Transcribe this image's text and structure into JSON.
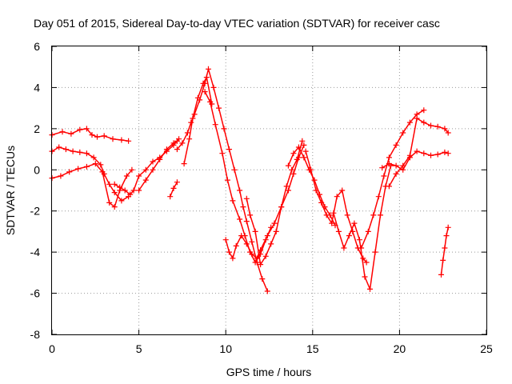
{
  "chart_data": {
    "type": "line",
    "title": "Day 051 of 2015, Sidereal Day-to-day VTEC variation (SDTVAR) for receiver casc",
    "xlabel": "GPS time / hours",
    "ylabel": "SDTVAR / TECUs",
    "xlim": [
      0,
      25
    ],
    "ylim": [
      -8,
      6
    ],
    "xticks": [
      0,
      5,
      10,
      15,
      20,
      25
    ],
    "yticks": [
      -8,
      -6,
      -4,
      -2,
      0,
      2,
      4,
      6
    ],
    "grid": true,
    "marker": "+",
    "color": "#ff0000",
    "series": [
      {
        "x": [
          0.0,
          0.6,
          1.1,
          1.6,
          2.0,
          2.3,
          2.6,
          3.0,
          3.5,
          4.0,
          4.4
        ],
        "y": [
          1.7,
          1.85,
          1.75,
          1.95,
          2.0,
          1.7,
          1.6,
          1.65,
          1.5,
          1.45,
          1.4
        ]
      },
      {
        "x": [
          0.0,
          0.4,
          0.8,
          1.2,
          1.6,
          2.0,
          2.4,
          2.8,
          3.0,
          3.3,
          3.6,
          4.0,
          4.4
        ],
        "y": [
          0.9,
          1.1,
          1.0,
          0.9,
          0.85,
          0.8,
          0.6,
          0.25,
          -0.2,
          -0.7,
          -1.1,
          -1.5,
          -1.3
        ]
      },
      {
        "x": [
          0.0,
          0.5,
          1.0,
          1.5,
          2.0,
          2.5,
          2.9,
          3.3,
          3.6,
          3.9,
          4.3,
          4.6
        ],
        "y": [
          -0.4,
          -0.3,
          -0.1,
          0.05,
          0.15,
          0.3,
          -0.1,
          -1.6,
          -1.8,
          -1.0,
          -0.3,
          0.0
        ]
      },
      {
        "x": [
          3.6,
          3.9,
          4.2,
          4.5,
          4.7,
          5.0,
          5.4,
          5.8,
          6.2,
          6.6,
          7.0,
          7.3
        ],
        "y": [
          -0.7,
          -0.85,
          -1.0,
          -1.2,
          -1.0,
          -0.3,
          0.0,
          0.4,
          0.6,
          0.9,
          1.2,
          1.5
        ]
      },
      {
        "x": [
          5.0,
          5.4,
          5.8,
          6.2,
          6.6,
          7.0,
          7.2
        ],
        "y": [
          -1.0,
          -0.5,
          0.0,
          0.5,
          1.0,
          1.3,
          1.4
        ]
      },
      {
        "x": [
          6.8,
          7.0,
          7.2
        ],
        "y": [
          -1.3,
          -0.9,
          -0.6
        ]
      },
      {
        "x": [
          7.2,
          7.5,
          7.8,
          8.0,
          8.2,
          8.5,
          8.8,
          9.0,
          9.3,
          9.6,
          9.9,
          10.2,
          10.5,
          10.8,
          11.0,
          11.2,
          11.5,
          11.8,
          12.1,
          12.4
        ],
        "y": [
          1.0,
          1.3,
          1.8,
          2.3,
          2.7,
          3.4,
          4.2,
          4.9,
          4.0,
          3.0,
          2.0,
          1.0,
          0.0,
          -1.0,
          -1.8,
          -2.5,
          -3.5,
          -4.5,
          -5.3,
          -5.9
        ]
      },
      {
        "x": [
          7.6,
          7.9,
          8.1,
          8.4,
          8.7,
          8.9,
          9.2
        ],
        "y": [
          0.3,
          1.5,
          2.5,
          3.5,
          4.2,
          4.5,
          3.2
        ]
      },
      {
        "x": [
          8.8,
          9.1,
          9.4,
          9.8,
          10.1,
          10.4,
          10.8,
          11.1,
          11.4,
          11.7,
          12.0,
          12.3,
          12.6
        ],
        "y": [
          3.8,
          3.3,
          2.2,
          0.8,
          -0.5,
          -1.5,
          -2.4,
          -3.2,
          -4.0,
          -4.5,
          -4.1,
          -3.4,
          -2.8
        ]
      },
      {
        "x": [
          10.0,
          10.2,
          10.4,
          10.6,
          10.9,
          11.2,
          11.5,
          11.8,
          12.0,
          12.4,
          12.8,
          13.2,
          13.6,
          13.9,
          14.2,
          14.5
        ],
        "y": [
          -3.4,
          -4.0,
          -4.3,
          -3.7,
          -3.2,
          -3.6,
          -4.1,
          -4.3,
          -3.9,
          -3.2,
          -2.6,
          -1.8,
          -1.0,
          -0.2,
          0.6,
          1.2
        ]
      },
      {
        "x": [
          11.2,
          11.4,
          11.7,
          12.0,
          12.3,
          12.6,
          12.9,
          13.2,
          13.5,
          13.8,
          14.1,
          14.4
        ],
        "y": [
          -1.4,
          -2.2,
          -3.0,
          -4.6,
          -4.2,
          -3.6,
          -3.0,
          -1.8,
          -0.8,
          0.0,
          0.5,
          1.4
        ]
      },
      {
        "x": [
          13.6,
          13.9,
          14.2,
          14.5,
          14.8,
          15.1,
          15.4,
          15.7,
          16.0,
          16.3
        ],
        "y": [
          0.2,
          0.8,
          1.1,
          0.6,
          0.0,
          -0.5,
          -1.2,
          -1.8,
          -2.2,
          -2.7
        ]
      },
      {
        "x": [
          14.6,
          14.9,
          15.2,
          15.5,
          15.8,
          16.1,
          16.4,
          16.7,
          17.0,
          17.3,
          17.6,
          17.9,
          18.1
        ],
        "y": [
          0.9,
          0.0,
          -1.0,
          -1.6,
          -2.2,
          -2.6,
          -1.3,
          -1.0,
          -2.2,
          -3.0,
          -3.8,
          -4.3,
          -4.5
        ]
      },
      {
        "x": [
          16.2,
          16.5,
          16.8,
          17.1,
          17.4,
          17.7,
          18.0,
          18.3,
          18.6,
          18.9,
          19.2,
          19.5
        ],
        "y": [
          -2.1,
          -3.0,
          -3.8,
          -3.2,
          -2.6,
          -3.4,
          -5.2,
          -5.8,
          -4.0,
          -2.2,
          -0.8,
          0.2
        ]
      },
      {
        "x": [
          17.8,
          18.2,
          18.5,
          18.8,
          19.1,
          19.4,
          19.8,
          20.2,
          20.6,
          21.0,
          21.4
        ],
        "y": [
          -3.8,
          -3.0,
          -2.2,
          -1.3,
          -0.3,
          0.6,
          1.2,
          1.8,
          2.3,
          2.7,
          2.9
        ]
      },
      {
        "x": [
          19.0,
          19.4,
          19.8,
          20.2,
          20.6,
          21.0,
          21.4,
          21.8,
          22.2,
          22.6,
          22.8
        ],
        "y": [
          0.1,
          0.3,
          0.2,
          0.0,
          0.6,
          0.9,
          0.8,
          0.7,
          0.75,
          0.85,
          0.8
        ]
      },
      {
        "x": [
          19.4,
          19.8,
          20.2,
          20.6,
          21.0,
          21.4,
          21.8,
          22.2,
          22.6,
          22.8
        ],
        "y": [
          -0.8,
          -0.2,
          0.2,
          0.7,
          2.5,
          2.3,
          2.15,
          2.1,
          2.0,
          1.8
        ]
      },
      {
        "x": [
          22.4,
          22.5,
          22.6,
          22.7,
          22.8
        ],
        "y": [
          -5.1,
          -4.4,
          -3.8,
          -3.2,
          -2.8
        ]
      }
    ]
  }
}
